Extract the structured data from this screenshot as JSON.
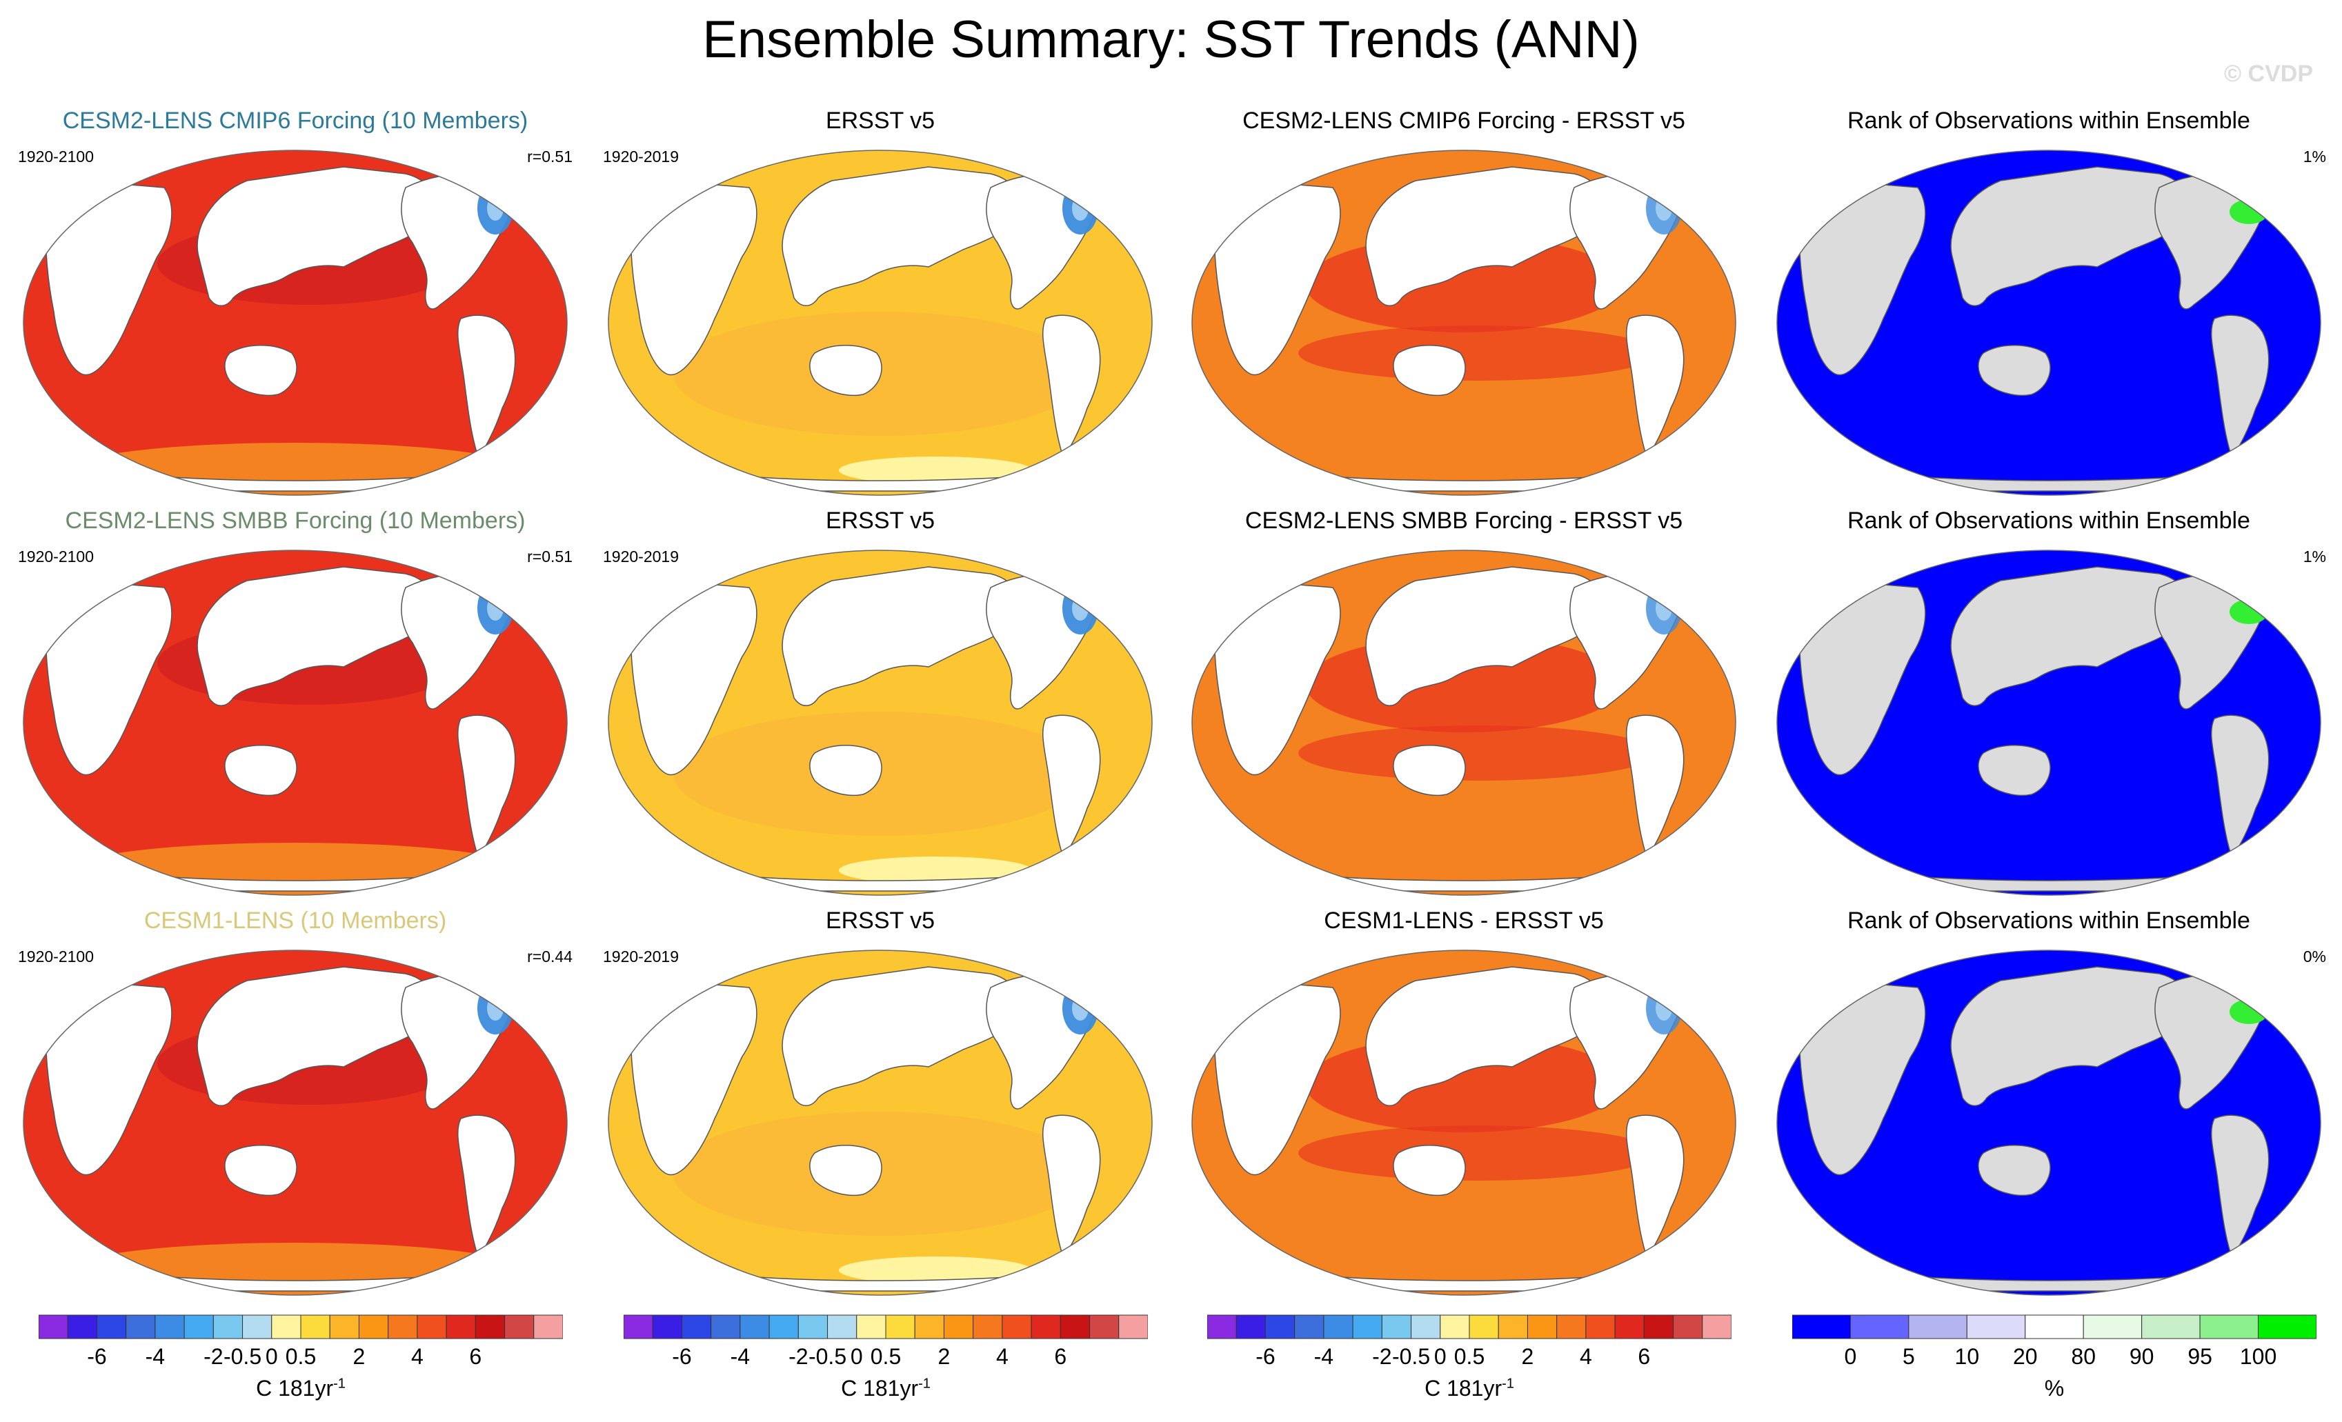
{
  "title": "Ensemble Summary: SST Trends (ANN)",
  "watermark": "© CVDP",
  "colors": {
    "ocean_blue_rank": "#0000ff",
    "ocean_red": "#e8321e",
    "ocean_orange": "#f58220",
    "ocean_yellow": "#fcc633",
    "land": "#ffffff",
    "land_rank": "#dcdcdc",
    "cold_anomaly": "#3c8cdc",
    "rank_green": "#33ee33",
    "title_cmip6": "#2b7a9c",
    "title_smbb": "#6a8c6a",
    "title_cesm1": "#d8c878"
  },
  "rows": [
    {
      "model": {
        "title": "CESM2-LENS CMIP6 Forcing (10 Members)",
        "years": "1920-2100",
        "corr": "r=0.51",
        "title_color": "#2b7a9c",
        "fill": "red"
      },
      "obs": {
        "title": "ERSST v5",
        "years": "1920-2019"
      },
      "diff": {
        "title": "CESM2-LENS CMIP6 Forcing - ERSST v5",
        "fill": "mixed"
      },
      "rank": {
        "title": "Rank of Observations within Ensemble",
        "pct": "1%"
      }
    },
    {
      "model": {
        "title": "CESM2-LENS SMBB Forcing (10 Members)",
        "years": "1920-2100",
        "corr": "r=0.51",
        "title_color": "#6a8c6a",
        "fill": "red"
      },
      "obs": {
        "title": "ERSST v5",
        "years": "1920-2019"
      },
      "diff": {
        "title": "CESM2-LENS SMBB Forcing - ERSST v5",
        "fill": "mixed"
      },
      "rank": {
        "title": "Rank of Observations within Ensemble",
        "pct": "1%"
      }
    },
    {
      "model": {
        "title": "CESM1-LENS (10 Members)",
        "years": "1920-2100",
        "corr": "r=0.44",
        "title_color": "#d8c878",
        "fill": "red"
      },
      "obs": {
        "title": "ERSST v5",
        "years": "1920-2019"
      },
      "diff": {
        "title": "CESM1-LENS - ERSST v5",
        "fill": "mixed"
      },
      "rank": {
        "title": "Rank of Observations within Ensemble",
        "pct": "0%"
      }
    }
  ],
  "colorbars": {
    "trend": {
      "colors": [
        "#8a2be2",
        "#3a1ee6",
        "#2d46e6",
        "#3c6edc",
        "#3c8ce6",
        "#46aaf0",
        "#78c8f0",
        "#b4dcf0",
        "#fff5a0",
        "#fcdc3c",
        "#fcb428",
        "#fa9614",
        "#f5781e",
        "#f0501e",
        "#e1281e",
        "#c81414",
        "#d24646",
        "#f5a0a0"
      ],
      "labels": [
        "-6",
        "-4",
        "-2",
        "-0.5",
        "0",
        "0.5",
        "2",
        "4",
        "6"
      ],
      "unit": "C 181yr",
      "unit_exp": "-1"
    },
    "rank": {
      "colors": [
        "#0000ff",
        "#6464ff",
        "#b4b4f0",
        "#dcdcfa",
        "#ffffff",
        "#e6fae6",
        "#c8f0c8",
        "#8cf08c",
        "#00ee00"
      ],
      "labels": [
        "0",
        "5",
        "10",
        "20",
        "80",
        "90",
        "95",
        "100"
      ],
      "unit": "%"
    }
  }
}
